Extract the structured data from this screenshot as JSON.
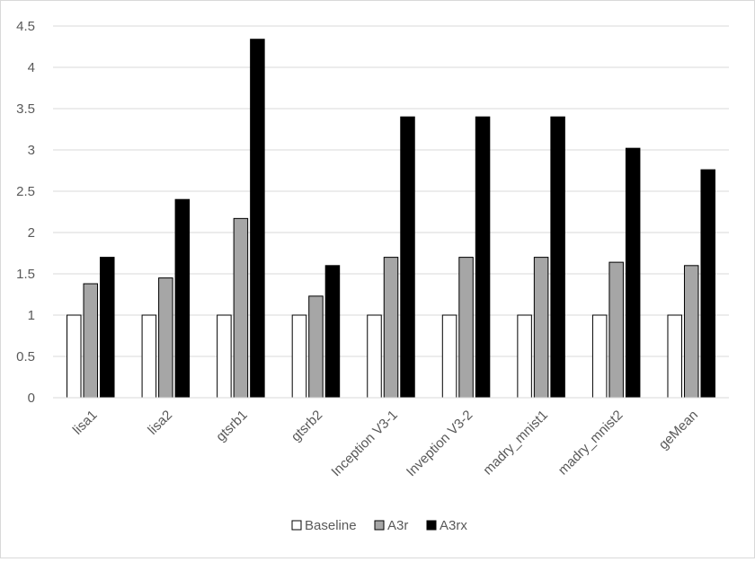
{
  "chart_data": {
    "type": "bar",
    "categories": [
      "lisa1",
      "lisa2",
      "gtsrb1",
      "gtsrb2",
      "Inception V3-1",
      "Inveption V3-2",
      "madry_mnist1",
      "madry_mnist2",
      "geMean"
    ],
    "series": [
      {
        "name": "Baseline",
        "color": "#ffffff",
        "values": [
          1,
          1,
          1,
          1,
          1,
          1,
          1,
          1,
          1
        ]
      },
      {
        "name": "A3r",
        "color": "#a6a6a6",
        "values": [
          1.38,
          1.45,
          2.17,
          1.23,
          1.7,
          1.7,
          1.7,
          1.64,
          1.6
        ]
      },
      {
        "name": "A3rx",
        "color": "#000000",
        "values": [
          1.7,
          2.4,
          4.34,
          1.6,
          3.4,
          3.4,
          3.4,
          3.02,
          2.76
        ]
      }
    ],
    "yticks": [
      "0",
      "0.5",
      "1",
      "1.5",
      "2",
      "2.5",
      "3",
      "3.5",
      "4",
      "4.5"
    ],
    "ylim": [
      0,
      4.5
    ],
    "grid": true,
    "legend_position": "bottom"
  }
}
